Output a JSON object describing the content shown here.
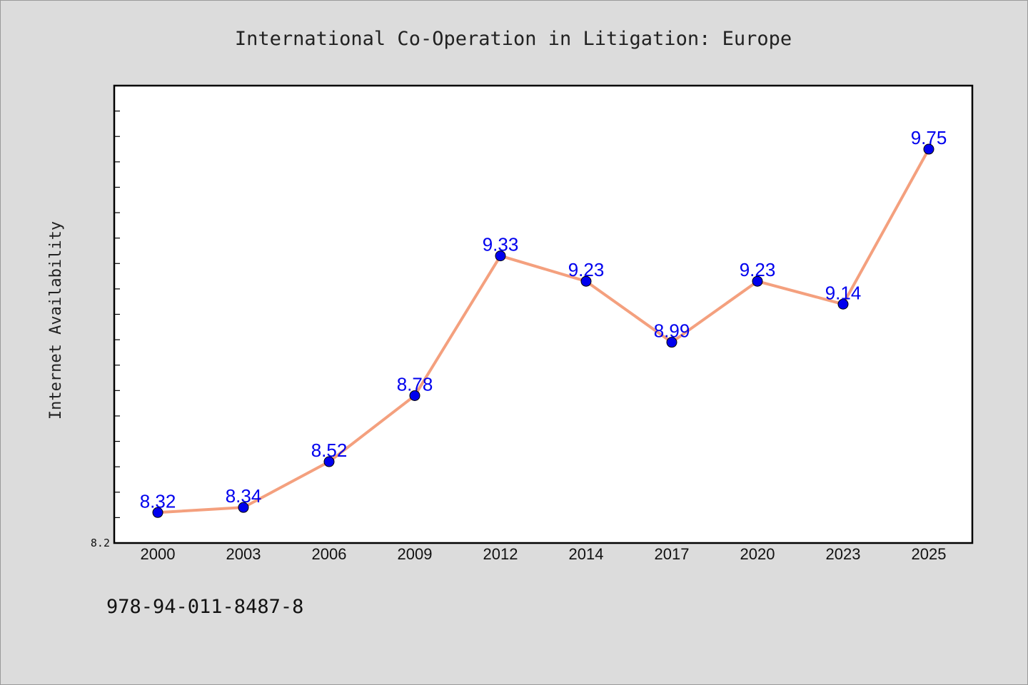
{
  "chart_data": {
    "type": "line",
    "title": "International Co-Operation in Litigation: Europe",
    "xlabel": "",
    "ylabel": "Internet Availability",
    "categories": [
      "2000",
      "2003",
      "2006",
      "2009",
      "2012",
      "2014",
      "2017",
      "2020",
      "2023",
      "2025"
    ],
    "series": [
      {
        "values": [
          8.32,
          8.34,
          8.52,
          8.78,
          9.33,
          9.23,
          8.99,
          9.23,
          9.14,
          9.75
        ],
        "labels": [
          "8.32",
          "8.34",
          "8.52",
          "8.78",
          "9.33",
          "9.23",
          "8.99",
          "9.23",
          "9.14",
          "9.75"
        ]
      }
    ],
    "ylim": [
      8.2,
      10.0
    ],
    "yticks": [
      "8.2"
    ],
    "grid": false,
    "line_color": "#f4a07e",
    "marker_color": "#0000ee",
    "label_color": "#0000ee"
  },
  "footer": {
    "isbn": "978-94-011-8487-8"
  }
}
